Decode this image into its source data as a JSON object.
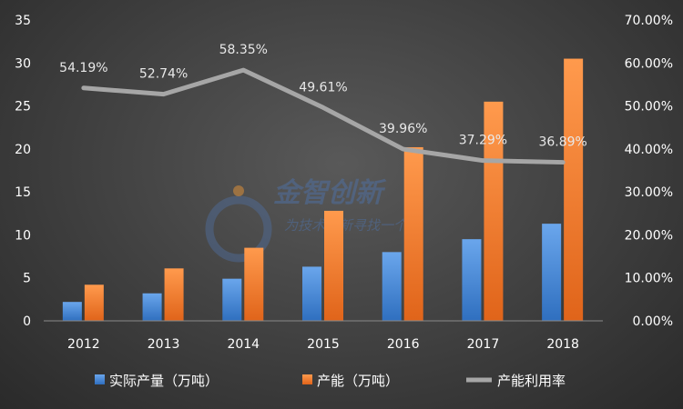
{
  "chart_data": {
    "type": "bar",
    "categories": [
      "2012",
      "2013",
      "2014",
      "2015",
      "2016",
      "2017",
      "2018"
    ],
    "series": [
      {
        "name": "实际产量（万吨）",
        "kind": "bar",
        "axis": "left",
        "color": "#4f8fd8",
        "values": [
          2.2,
          3.2,
          4.9,
          6.3,
          8.0,
          9.5,
          11.3
        ]
      },
      {
        "name": "产能（万吨）",
        "kind": "bar",
        "axis": "left",
        "color": "#f07b2c",
        "values": [
          4.2,
          6.1,
          8.5,
          12.8,
          20.2,
          25.5,
          30.5
        ]
      },
      {
        "name": "产能利用率",
        "kind": "line",
        "axis": "right",
        "color": "#a6a6a6",
        "values": [
          54.19,
          52.74,
          58.35,
          49.61,
          39.96,
          37.29,
          36.89
        ],
        "labels": [
          "54.19%",
          "52.74%",
          "58.35%",
          "49.61%",
          "39.96%",
          "37.29%",
          "36.89%"
        ]
      }
    ],
    "y_left": {
      "min": 0,
      "max": 35,
      "ticks": [
        "0",
        "5",
        "10",
        "15",
        "20",
        "25",
        "30",
        "35"
      ]
    },
    "y_right": {
      "min": 0,
      "max": 70,
      "ticks": [
        "0.00%",
        "10.00%",
        "20.00%",
        "30.00%",
        "40.00%",
        "50.00%",
        "60.00%",
        "70.00%"
      ]
    },
    "grid": false,
    "legend_position": "bottom"
  },
  "watermark": {
    "title": "金智创新",
    "subtitle": "为技术创新寻找一个"
  }
}
